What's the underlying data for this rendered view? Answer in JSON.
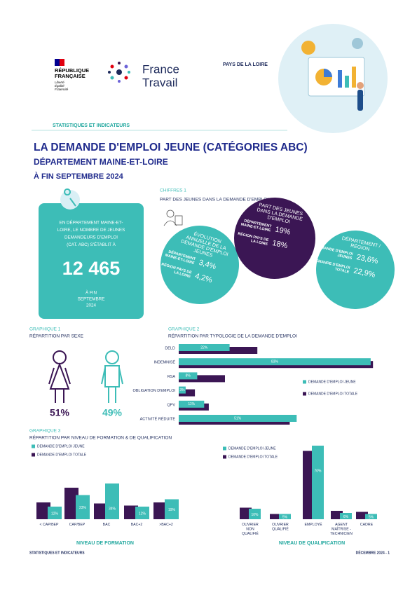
{
  "header": {
    "republique": [
      "RÉPUBLIQUE",
      "FRANÇAISE"
    ],
    "devise": [
      "Liberté",
      "Égalité",
      "Fraternité"
    ],
    "brand": [
      "France",
      "Travail"
    ],
    "region": "PAYS DE LA LOIRE",
    "section": "STATISTIQUES ET INDICATEURS"
  },
  "title": "LA DEMANDE D'EMPLOI JEUNE (CATÉGORIES ABC)",
  "subtitle": "DÉPARTEMENT MAINE-ET-LOIRE",
  "date": "À FIN SEPTEMBRE 2024",
  "key_figure": {
    "text": [
      "EN DÉPARTEMENT MAINE-ET-",
      "LOIRE, LE NOMBRE DE JEUNES",
      "DEMANDEURS D'EMPLOI",
      "(CAT. ABC) S'ÉTABLIT À"
    ],
    "value": "12 465",
    "period": [
      "À FIN",
      "SEPTEMBRE",
      "2024"
    ]
  },
  "chiffres": {
    "label": "CHIFFRES 1",
    "title": "PART DES JEUNES DANS LA DEMANDE D'EMPLOI",
    "circles": [
      {
        "title": [
          "ÉVOLUTION",
          "ANNUELLE DE LA",
          "DEMANDE D'EMPLOI",
          "JEUNES"
        ],
        "rows": [
          {
            "label": [
              "DÉPARTEMENT",
              "MAINE-ET-LOIRE"
            ],
            "value": "3,4%"
          },
          {
            "label": [
              "RÉGION PAYS DE",
              "LA LOIRE"
            ],
            "value": "4,2%"
          }
        ]
      },
      {
        "title": [
          "PART DES JEUNES",
          "DANS LA DEMANDE",
          "D'EMPLOI"
        ],
        "rows": [
          {
            "label": [
              "DÉPARTEMENT",
              "MAINE-ET-LOIRE"
            ],
            "value": "19%"
          },
          {
            "label": [
              "RÉGION PAYS DE",
              "LA LOIRE"
            ],
            "value": "18%"
          }
        ]
      },
      {
        "title": [
          "DÉPARTEMENT /",
          "RÉGION"
        ],
        "rows": [
          {
            "label": [
              "DEMANDE D'EMPLOI",
              "JEUNES"
            ],
            "value": "23,6%"
          },
          {
            "label": [
              "DEMANDE D'EMPLOI",
              "TOTALE"
            ],
            "value": "22,9%"
          }
        ]
      }
    ]
  },
  "graphique1": {
    "label": "GRAPHIQUE 1",
    "title": "RÉPARTITION PAR SEXE",
    "values": [
      "51%",
      "49%"
    ]
  },
  "chart_data": [
    {
      "type": "hbar",
      "label": "GRAPHIQUE 2",
      "title": "RÉPARTITION PAR TYPOLOGIE DE LA DEMANDE D'EMPLOI",
      "categories": [
        "DELD",
        "INDEMNISÉ",
        "RSA",
        "OBLIGATION D'EMPLOI",
        "QPV",
        "ACTIVITÉ RÉDUITE"
      ],
      "xlim": [
        0,
        100
      ],
      "series": [
        {
          "name": "DEMANDE D'EMPLOI JEUNE",
          "color": "#3dbdb7",
          "values": [
            22,
            83,
            8,
            3,
            11,
            51
          ],
          "value_labels": [
            "22%",
            "83%",
            "8%",
            "3%",
            "11%",
            "51%"
          ]
        },
        {
          "name": "DEMANDE D'EMPLOI TOTALE",
          "color": "#3b1654",
          "values": [
            34,
            84,
            20,
            7,
            13,
            48
          ]
        }
      ]
    },
    {
      "type": "bar",
      "label": "GRAPHIQUE 3",
      "title": "RÉPARTITION PAR NIVEAU DE FORMATION & DE QUALIFICATION",
      "xlabel": "NIVEAU DE FORMATION",
      "categories": [
        "< CAP/BEP",
        "CAP/BEP",
        "BAC",
        "BAC+2",
        ">BAC+2"
      ],
      "ylim": [
        0,
        100
      ],
      "series": [
        {
          "name": "DEMANDE D'EMPLOI JEUNE",
          "color": "#3dbdb7",
          "values": [
            12,
            23,
            34,
            12,
            19
          ],
          "value_labels": [
            "12%",
            "23%",
            "34%",
            "12%",
            "19%"
          ]
        },
        {
          "name": "DEMANDE D'EMPLOI TOTALE",
          "color": "#3b1654",
          "values": [
            16,
            30,
            15,
            13,
            16
          ]
        }
      ]
    },
    {
      "type": "bar",
      "xlabel": "NIVEAU DE QUALIFICATION",
      "categories": [
        "OUVRIER NON QUALIFIÉ",
        "OUVRIER QUALIFIÉ",
        "EMPLOYÉ",
        "AGENT MAÎTRISE - TECHNICIEN",
        "CADRE"
      ],
      "ylim": [
        0,
        100
      ],
      "series": [
        {
          "name": "DEMANDE D'EMPLOI JEUNE",
          "color": "#3dbdb7",
          "values": [
            10,
            5,
            70,
            6,
            5
          ],
          "value_labels": [
            "10%",
            "5%",
            "70%",
            "6%",
            "5%"
          ]
        },
        {
          "name": "DEMANDE D'EMPLOI TOTALE",
          "color": "#3b1654",
          "values": [
            11,
            5,
            65,
            8,
            7
          ]
        }
      ]
    }
  ],
  "footer": {
    "left": "STATISTIQUES ET INDICATEURS",
    "right": "DÉCEMBRE 2024 - 1"
  }
}
